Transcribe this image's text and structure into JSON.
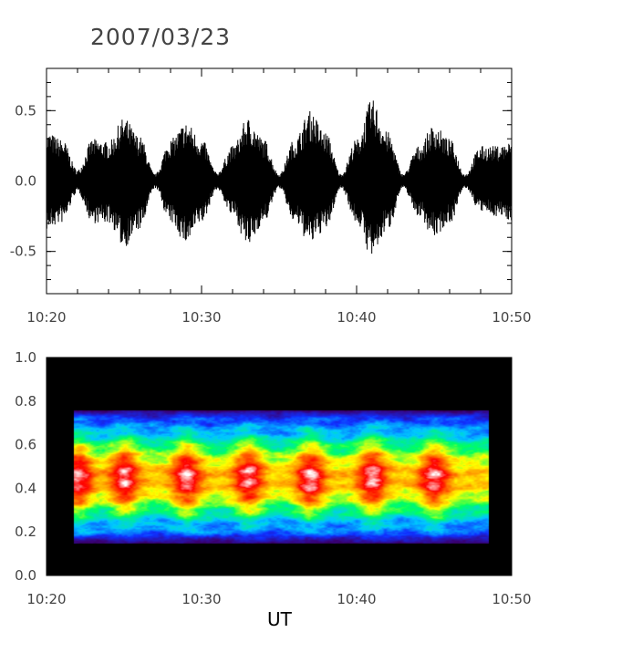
{
  "chart_data": [
    {
      "type": "line",
      "title": "2007/03/23",
      "xlabel": "",
      "ylabel": "",
      "x_range": [
        "10:20",
        "10:50"
      ],
      "ylim": [
        -0.8,
        0.8
      ],
      "x_ticks": [
        "10:20",
        "10:30",
        "10:40",
        "10:50"
      ],
      "y_ticks": [
        "-0.5",
        "0.0",
        "0.5"
      ],
      "series": [
        {
          "envelope": [
            {
              "x": "10:20",
              "max": 0.35,
              "min": -0.35
            },
            {
              "x": "10:21",
              "max": 0.3,
              "min": -0.3
            },
            {
              "x": "10:22",
              "max": 0.08,
              "min": -0.08
            },
            {
              "x": "10:23",
              "max": 0.3,
              "min": -0.3
            },
            {
              "x": "10:24",
              "max": 0.28,
              "min": -0.3
            },
            {
              "x": "10:25",
              "max": 0.45,
              "min": -0.47
            },
            {
              "x": "10:26",
              "max": 0.32,
              "min": -0.35
            },
            {
              "x": "10:27",
              "max": 0.05,
              "min": -0.05
            },
            {
              "x": "10:28",
              "max": 0.3,
              "min": -0.3
            },
            {
              "x": "10:29",
              "max": 0.42,
              "min": -0.45
            },
            {
              "x": "10:30",
              "max": 0.3,
              "min": -0.3
            },
            {
              "x": "10:31",
              "max": 0.06,
              "min": -0.06
            },
            {
              "x": "10:32",
              "max": 0.25,
              "min": -0.25
            },
            {
              "x": "10:33",
              "max": 0.45,
              "min": -0.47
            },
            {
              "x": "10:34",
              "max": 0.3,
              "min": -0.3
            },
            {
              "x": "10:35",
              "max": 0.05,
              "min": -0.05
            },
            {
              "x": "10:36",
              "max": 0.3,
              "min": -0.3
            },
            {
              "x": "10:37",
              "max": 0.5,
              "min": -0.45
            },
            {
              "x": "10:38",
              "max": 0.35,
              "min": -0.35
            },
            {
              "x": "10:39",
              "max": 0.05,
              "min": -0.05
            },
            {
              "x": "10:40",
              "max": 0.3,
              "min": -0.3
            },
            {
              "x": "10:41",
              "max": 0.58,
              "min": -0.55
            },
            {
              "x": "10:42",
              "max": 0.35,
              "min": -0.35
            },
            {
              "x": "10:43",
              "max": 0.05,
              "min": -0.05
            },
            {
              "x": "10:44",
              "max": 0.25,
              "min": -0.25
            },
            {
              "x": "10:45",
              "max": 0.4,
              "min": -0.4
            },
            {
              "x": "10:46",
              "max": 0.3,
              "min": -0.3
            },
            {
              "x": "10:47",
              "max": 0.05,
              "min": -0.05
            },
            {
              "x": "10:48",
              "max": 0.25,
              "min": -0.22
            },
            {
              "x": "10:49",
              "max": 0.25,
              "min": -0.25
            },
            {
              "x": "10:50",
              "max": 0.28,
              "min": -0.28
            }
          ]
        }
      ]
    },
    {
      "type": "heatmap",
      "xlabel": "UT",
      "ylabel": "",
      "x_range": [
        "10:20",
        "10:50"
      ],
      "ylim": [
        0.0,
        1.0
      ],
      "x_ticks": [
        "10:20",
        "10:30",
        "10:40",
        "10:50"
      ],
      "y_ticks": [
        "0.0",
        "0.2",
        "0.4",
        "0.6",
        "0.8",
        "1.0"
      ],
      "data_extent": {
        "x": [
          "10:21:45",
          "10:48:30"
        ],
        "y": [
          0.15,
          0.76
        ]
      },
      "colorscale": [
        "#000000",
        "#3a0070",
        "#1030ff",
        "#00c8ff",
        "#00ff60",
        "#ffff00",
        "#ff8000",
        "#ff0000",
        "#ffffff"
      ],
      "peak_frequency": 0.45,
      "peak_times": [
        "10:22",
        "10:25",
        "10:29",
        "10:33",
        "10:37",
        "10:41",
        "10:45"
      ]
    }
  ],
  "page": {
    "title": "2007/03/23",
    "xlabel": "UT"
  }
}
